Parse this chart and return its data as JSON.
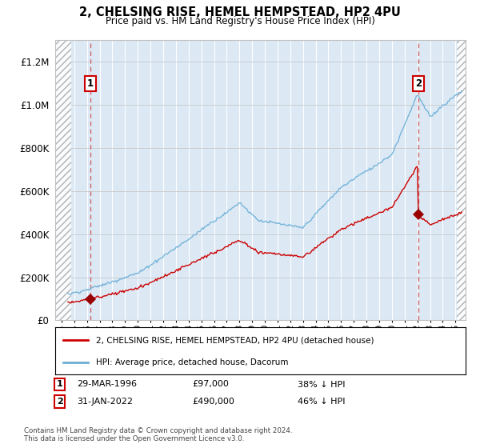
{
  "title": "2, CHELSING RISE, HEMEL HEMPSTEAD, HP2 4PU",
  "subtitle": "Price paid vs. HM Land Registry's House Price Index (HPI)",
  "hpi_line_color": "#6baed6",
  "price_line_color": "#cc0000",
  "sale_marker_color": "#990000",
  "background_plot": "#dce9f5",
  "sale1_year": 1996.24,
  "sale1_price": 97000,
  "sale2_year": 2022.08,
  "sale2_price": 490000,
  "ylim": [
    0,
    1300000
  ],
  "xlim_start": 1993.5,
  "xlim_end": 2025.8,
  "hatch_left_end": 1994.75,
  "hatch_right_start": 2025.08,
  "legend_line1": "2, CHELSING RISE, HEMEL HEMPSTEAD, HP2 4PU (detached house)",
  "legend_line2": "HPI: Average price, detached house, Dacorum",
  "note1_label": "1",
  "note1_date": "29-MAR-1996",
  "note1_price": "£97,000",
  "note1_hpi": "38% ↓ HPI",
  "note2_label": "2",
  "note2_date": "31-JAN-2022",
  "note2_price": "£490,000",
  "note2_hpi": "46% ↓ HPI",
  "footer": "Contains HM Land Registry data © Crown copyright and database right 2024.\nThis data is licensed under the Open Government Licence v3.0."
}
